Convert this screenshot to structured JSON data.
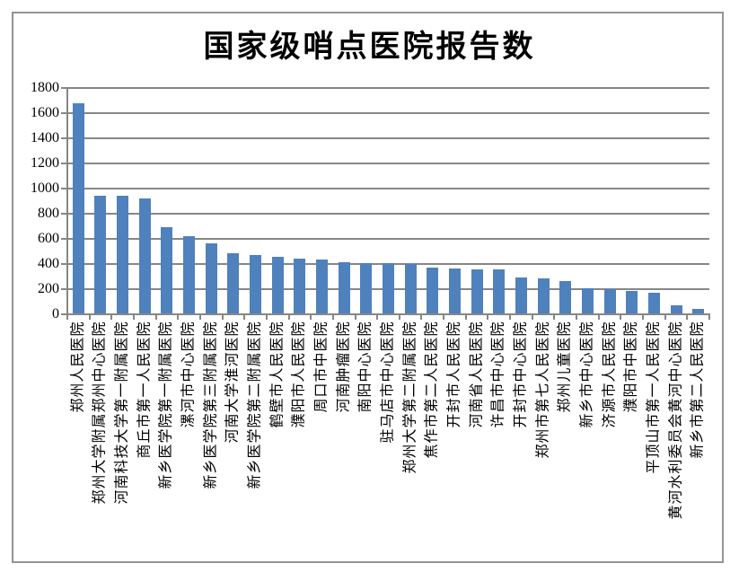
{
  "window": {
    "background": "#ffffff",
    "border_color": "#949494"
  },
  "chart_data": {
    "type": "bar",
    "title": "国家级哨点医院报告数",
    "xlabel": "",
    "ylabel": "",
    "ylim": [
      0,
      1800
    ],
    "ytick_step": 200,
    "yticks": [
      0,
      200,
      400,
      600,
      800,
      1000,
      1200,
      1400,
      1600,
      1800
    ],
    "grid": true,
    "legend_position": "none",
    "bar_color": "#4F81BD",
    "grid_color": "#878787",
    "axis_color": "#878787",
    "text_color": "#000000",
    "categories": [
      "郑州人民医院",
      "郑州大学附属郑州中心医院",
      "河南科技大学第一附属医院",
      "商丘市第一人民医院",
      "新乡医学院第一附属医院",
      "漯河市中心医院",
      "新乡医学院第三附属医院",
      "河南大学淮河医院",
      "新乡医学院第二附属医院",
      "鹤壁市人民医院",
      "濮阳市人民医院",
      "周口市中医院",
      "河南肿瘤医院",
      "南阳中心医院",
      "驻马店市中心医院",
      "郑州大学第二附属医院",
      "焦作市第二人民医院",
      "开封市人民医院",
      "河南省人民医院",
      "许昌市中心医院",
      "开封市中心医院",
      "郑州市第七人民医院",
      "郑州儿童医院",
      "新乡市中心医院",
      "济源市人民医院",
      "濮阳市中医院",
      "平顶山市第一人民医院",
      "黄河水利委员会黄河中心医院",
      "新乡市第二人民医院"
    ],
    "values": [
      1680,
      940,
      940,
      925,
      690,
      620,
      565,
      485,
      470,
      455,
      445,
      435,
      415,
      410,
      405,
      400,
      370,
      365,
      360,
      355,
      290,
      285,
      265,
      205,
      200,
      185,
      175,
      75,
      40
    ]
  }
}
